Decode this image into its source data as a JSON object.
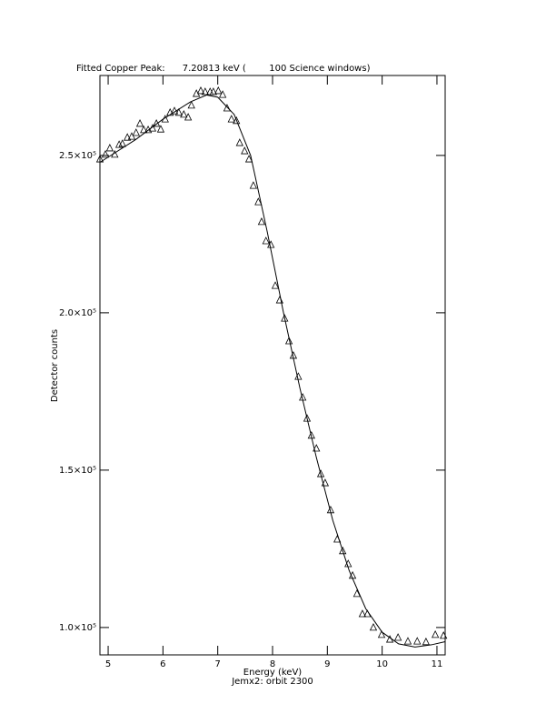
{
  "chart_data": {
    "type": "scatter",
    "title": "Fitted Copper Peak:      7.20813 keV (        100 Science windows)",
    "xlabel": "Energy (keV)",
    "ylabel": "Detector counts",
    "subtitle": "Jemx2: orbit 2300",
    "xlim": [
      4.85,
      11.15
    ],
    "ylim": [
      91300,
      275400
    ],
    "xticks": [
      5,
      6,
      7,
      8,
      9,
      10,
      11
    ],
    "yticks": [
      {
        "value": 100000,
        "label": "1.0×10⁵"
      },
      {
        "value": 150000,
        "label": "1.5×10⁵"
      },
      {
        "value": 200000,
        "label": "2.0×10⁵"
      },
      {
        "value": 250000,
        "label": "2.5×10⁵"
      }
    ],
    "series": [
      {
        "color": "#000000",
        "marker": "triangle",
        "x": [
          4.85,
          4.95,
          5.03,
          5.12,
          5.2,
          5.26,
          5.35,
          5.43,
          5.51,
          5.58,
          5.65,
          5.73,
          5.81,
          5.88,
          5.96,
          6.04,
          6.13,
          6.21,
          6.29,
          6.38,
          6.46,
          6.52,
          6.61,
          6.69,
          6.77,
          6.86,
          6.92,
          7.01,
          7.09,
          7.17,
          7.25,
          7.34,
          7.4,
          7.49,
          7.57,
          7.65,
          7.74,
          7.8,
          7.88,
          7.97,
          8.05,
          8.13,
          8.22,
          8.3,
          8.38,
          8.47,
          8.55,
          8.63,
          8.71,
          8.8,
          8.88,
          8.96,
          9.06,
          9.18,
          9.28,
          9.38,
          9.46,
          9.54,
          9.64,
          9.73,
          9.84,
          9.99,
          10.14,
          10.29,
          10.47,
          10.64,
          10.8,
          10.97,
          11.12
        ],
        "values": [
          248800,
          250300,
          252300,
          250300,
          253400,
          253700,
          255700,
          256000,
          257200,
          260100,
          258100,
          258100,
          258600,
          260100,
          258300,
          261500,
          263600,
          264100,
          263600,
          263000,
          262100,
          265900,
          269600,
          270500,
          270200,
          270200,
          270200,
          270500,
          269300,
          265000,
          261500,
          261000,
          254000,
          251400,
          248800,
          240400,
          235200,
          228900,
          222800,
          221600,
          208600,
          204000,
          198200,
          191000,
          186400,
          179700,
          173100,
          166400,
          161000,
          156900,
          148800,
          145900,
          137300,
          128000,
          124300,
          120200,
          116500,
          110700,
          104300,
          104300,
          100000,
          97700,
          96200,
          96800,
          95600,
          95600,
          95400,
          97700,
          97400
        ]
      },
      {
        "color": "#000000",
        "marker": "line",
        "x": [
          4.85,
          5.5,
          6.0,
          6.5,
          6.8,
          7.0,
          7.3,
          7.6,
          7.9,
          8.2,
          8.5,
          8.8,
          9.1,
          9.4,
          9.7,
          10.0,
          10.3,
          10.6,
          10.9,
          11.15
        ],
        "values": [
          247800,
          255000,
          261500,
          267000,
          269200,
          268500,
          263000,
          250000,
          226000,
          200000,
          176000,
          154000,
          134000,
          118000,
          106000,
          98500,
          94800,
          93800,
          94500,
          95500
        ]
      }
    ]
  }
}
